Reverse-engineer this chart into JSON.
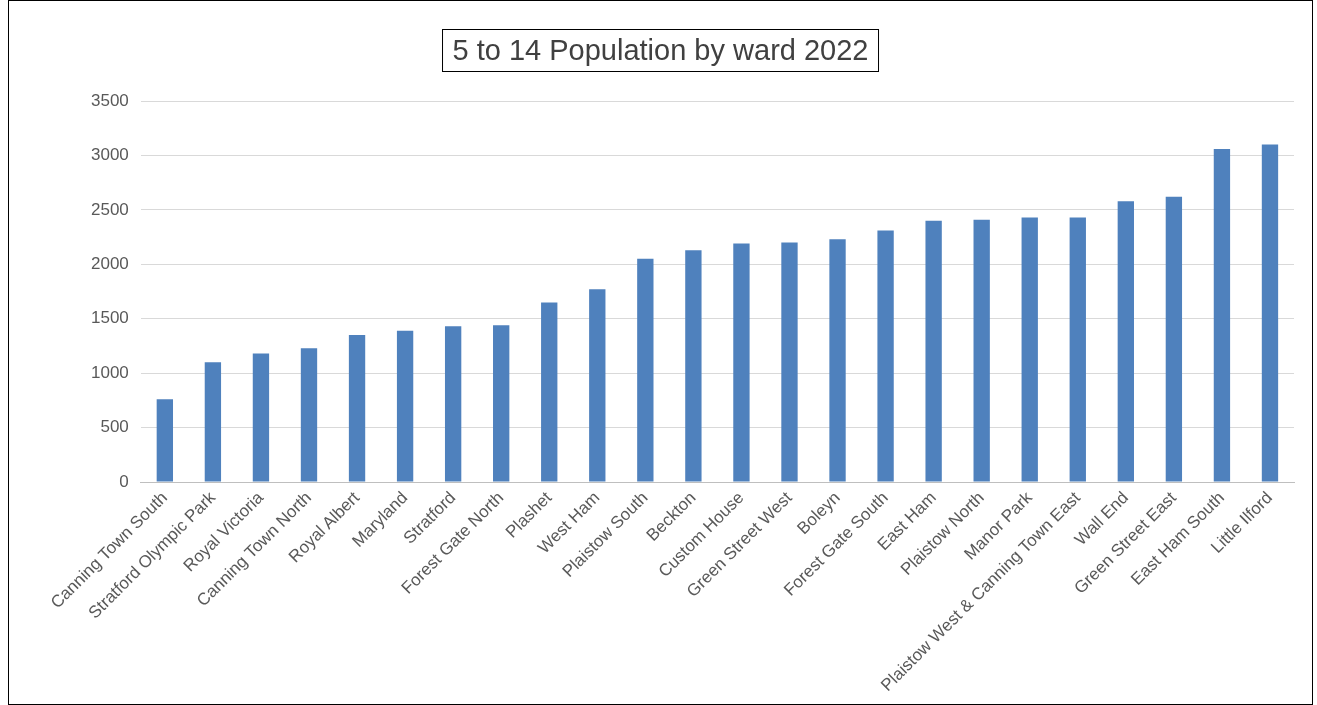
{
  "chart_data": {
    "type": "bar",
    "title": "5 to 14 Population by ward 2022",
    "categories": [
      "Canning Town South",
      "Stratford Olympic Park",
      "Royal Victoria",
      "Canning Town North",
      "Royal Albert",
      "Maryland",
      "Stratford",
      "Forest Gate North",
      "Plashet",
      "West Ham",
      "Plaistow South",
      "Beckton",
      "Custom House",
      "Green Street West",
      "Boleyn",
      "Forest Gate South",
      "East Ham",
      "Plaistow North",
      "Manor Park",
      "Plaistow West & Canning Town East",
      "Wall End",
      "Green Street East",
      "East Ham South",
      "Little Ilford"
    ],
    "values": [
      760,
      1100,
      1180,
      1230,
      1350,
      1390,
      1430,
      1440,
      1650,
      1770,
      2050,
      2130,
      2190,
      2200,
      2230,
      2310,
      2400,
      2410,
      2430,
      2430,
      2580,
      2620,
      3060,
      3100
    ],
    "color": "#4f81bd",
    "ylim": [
      0,
      3500
    ],
    "yticks": [
      0,
      500,
      1000,
      1500,
      2000,
      2500,
      3000,
      3500
    ],
    "grid": "y",
    "legend": false
  }
}
